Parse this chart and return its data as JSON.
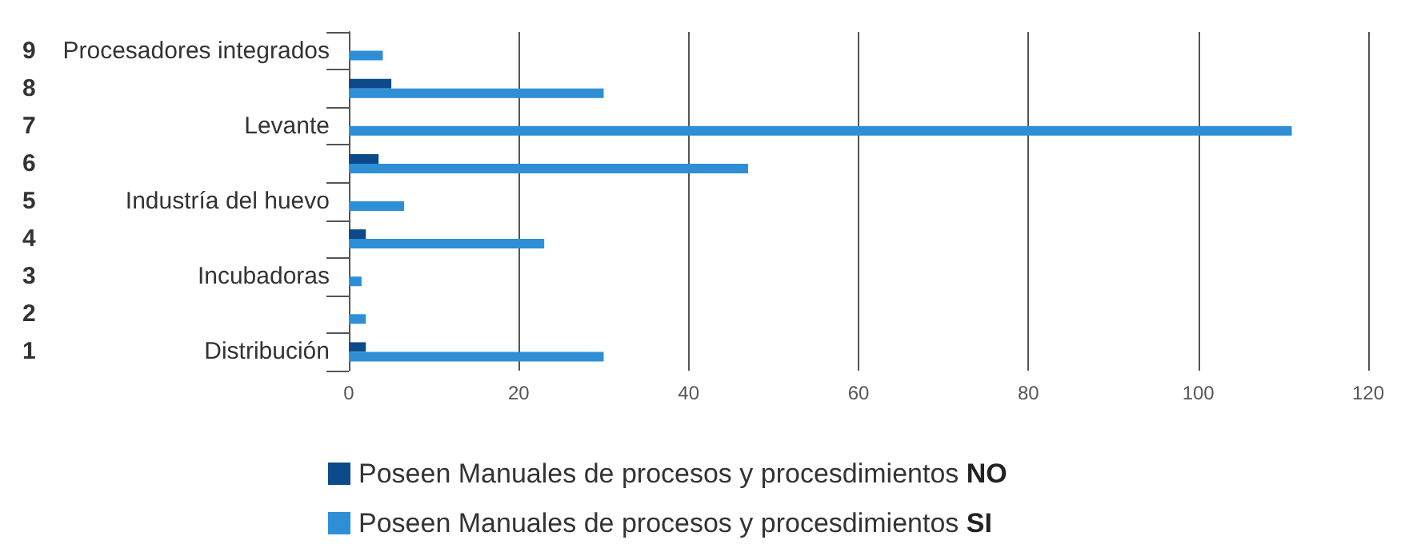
{
  "chart_data": {
    "type": "bar",
    "orientation": "horizontal",
    "categories": [
      "Procesadores integrados",
      null,
      "Levante",
      null,
      "Industría del huevo",
      null,
      "Incubadoras",
      null,
      "Distribución"
    ],
    "series": [
      {
        "name": "Poseen Manuales de procesos y procesdimientos NO",
        "color": "#0d4a8a",
        "values": [
          null,
          5,
          null,
          3.5,
          null,
          2,
          null,
          null,
          2
        ]
      },
      {
        "name": "Poseen Manuales de procesos y procesdimientos SI",
        "color": "#2e8fd6",
        "values": [
          4,
          30,
          111,
          47,
          6.5,
          23,
          1.5,
          2,
          30
        ]
      }
    ],
    "annotations": [
      "9",
      "8",
      "7",
      "6",
      "5",
      "4",
      "3",
      "2",
      "1"
    ],
    "xlim": [
      0,
      120
    ],
    "xticks": [
      0,
      20,
      40,
      60,
      80,
      100,
      120
    ],
    "grid": "x",
    "legend": "bottom"
  }
}
